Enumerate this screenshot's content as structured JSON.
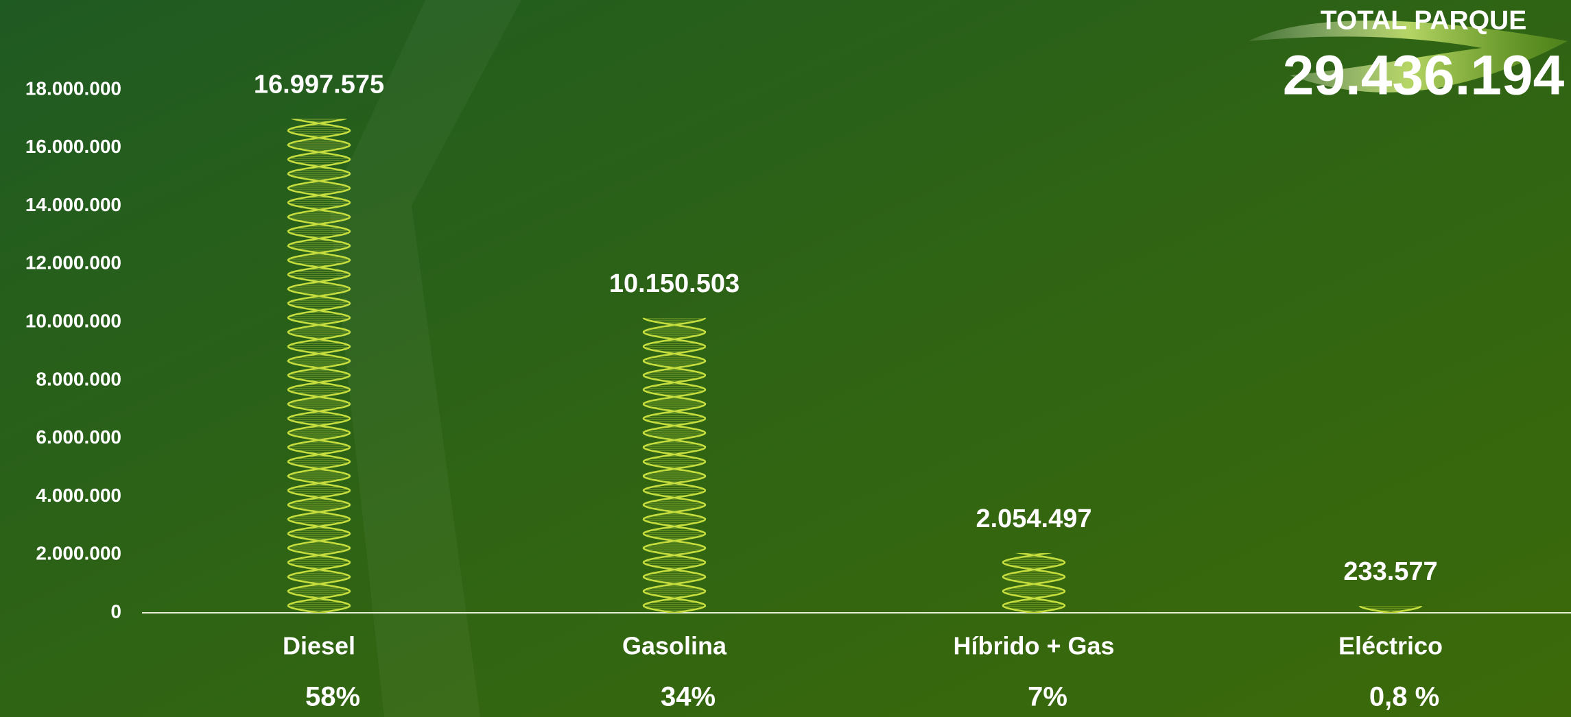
{
  "chart_data": {
    "type": "bar",
    "total_title": "TOTAL PARQUE",
    "total_label": "29.436.194",
    "categories": [
      "Diesel",
      "Gasolina",
      "Híbrido + Gas",
      "Eléctrico"
    ],
    "values": [
      16997575,
      10150503,
      2054497,
      233577
    ],
    "value_labels": [
      "16.997.575",
      "10.150.503",
      "2.054.497",
      "233.577"
    ],
    "share_labels": [
      "58%",
      "34%",
      "7%",
      "0,8 %"
    ],
    "color": "#c6de3e",
    "ylim": [
      0,
      18000000
    ],
    "yticks": [
      0,
      {
        "value": 2000000,
        "label": "2.000.000"
      },
      {
        "value": 4000000,
        "label": "4.000.000"
      },
      {
        "value": 6000000,
        "label": "6.000.000"
      },
      {
        "value": 8000000,
        "label": "8.000.000"
      },
      {
        "value": 10000000,
        "label": "10.000.000"
      },
      {
        "value": 12000000,
        "label": "12.000.000"
      },
      {
        "value": 14000000,
        "label": "14.000.000"
      },
      {
        "value": 16000000,
        "label": "16.000.000"
      },
      {
        "value": 18000000,
        "label": "18.000.000"
      }
    ],
    "grid": false
  }
}
